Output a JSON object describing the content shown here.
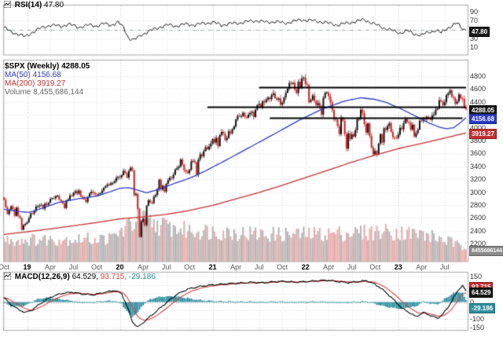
{
  "legends": {
    "rsi": {
      "name": "RSI(14)",
      "value": "47.80"
    },
    "price": {
      "symbol": "$SPX (Weekly)",
      "value": "4288.05"
    },
    "ma50": {
      "label": "MA(50)",
      "value": "4156.68"
    },
    "ma200": {
      "label": "MA(200)",
      "value": "3919.27"
    },
    "volume": {
      "label": "Volume",
      "value": "8,455,686,144"
    },
    "macd": {
      "name": "MACD(12,26,9)",
      "v1": "64.529,",
      "v2": "93.715,",
      "v3": "-29.186"
    }
  },
  "boxes": {
    "rsi": "47.80",
    "price": "4288.05",
    "ma50": "4156.68",
    "ma200": "3919.27",
    "volume": "8455686144",
    "macd": "64.529",
    "signal": "93.715",
    "hist": "-29.186"
  },
  "colors": {
    "up": "#111111",
    "down": "#cc2222",
    "ma50": "#2b3bc4",
    "ma200": "#c53030",
    "volume_up": "#b4b4b4",
    "volume_down": "#e7abab",
    "macd_line": "#000000",
    "signal_line": "#d94040",
    "histogram": "#2e8fa0",
    "rsi_line": "#111111",
    "trendline": "#000000",
    "grid": "#dedede",
    "grid_year": "#c6c6c6",
    "panel_border": "#aaaaaa"
  },
  "chart_data": {
    "type": "candlestick-multi-panel",
    "symbol": "$SPX",
    "timeframe": "Weekly",
    "panels": [
      "RSI(14)",
      "Price+MA+Volume",
      "MACD(12,26,9)"
    ],
    "x_ticks": [
      {
        "label": "Oct",
        "week": 0,
        "year": false
      },
      {
        "label": "19",
        "week": 13,
        "year": true
      },
      {
        "label": "Apr",
        "week": 26,
        "year": false
      },
      {
        "label": "Jul",
        "week": 39,
        "year": false
      },
      {
        "label": "Oct",
        "week": 52,
        "year": false
      },
      {
        "label": "20",
        "week": 65,
        "year": true
      },
      {
        "label": "Apr",
        "week": 78,
        "year": false
      },
      {
        "label": "Jul",
        "week": 91,
        "year": false
      },
      {
        "label": "Oct",
        "week": 104,
        "year": false
      },
      {
        "label": "21",
        "week": 117,
        "year": true
      },
      {
        "label": "Apr",
        "week": 130,
        "year": false
      },
      {
        "label": "Jul",
        "week": 143,
        "year": false
      },
      {
        "label": "Oct",
        "week": 156,
        "year": false
      },
      {
        "label": "22",
        "week": 169,
        "year": true
      },
      {
        "label": "Apr",
        "week": 182,
        "year": false
      },
      {
        "label": "Jul",
        "week": 195,
        "year": false
      },
      {
        "label": "Oct",
        "week": 208,
        "year": false
      },
      {
        "label": "23",
        "week": 221,
        "year": true
      },
      {
        "label": "Apr",
        "week": 234,
        "year": false
      },
      {
        "label": "Jul",
        "week": 247,
        "year": false
      }
    ],
    "price": {
      "last": 4288.05,
      "ylim": [
        2200,
        4900
      ],
      "y_ticks": [
        4800,
        4600,
        4400,
        4200,
        4000,
        3800,
        3600,
        3400,
        3200,
        3000,
        2800,
        2600,
        2400,
        2200
      ],
      "closes": [
        2886,
        2767,
        2658,
        2723,
        2781,
        2736,
        2632,
        2760,
        2633,
        2600,
        2417,
        2486,
        2506,
        2532,
        2596,
        2670,
        2665,
        2707,
        2776,
        2780,
        2793,
        2803,
        2743,
        2822,
        2801,
        2834,
        2893,
        2907,
        2905,
        2940,
        2945,
        2881,
        2859,
        2826,
        2752,
        2873,
        2887,
        2950,
        2942,
        2990,
        3014,
        2977,
        3026,
        2932,
        2919,
        2889,
        2847,
        2926,
        2979,
        3007,
        2992,
        2962,
        2952,
        2970,
        2986,
        3023,
        3067,
        3093,
        3120,
        3110,
        3141,
        3146,
        3169,
        3221,
        3240,
        3230,
        3265,
        3330,
        3295,
        3225,
        3328,
        3380,
        3338,
        2954,
        2972,
        2741,
        2305,
        2542,
        2585,
        2489,
        2790,
        2875,
        2837,
        2830,
        2930,
        2955,
        3044,
        3194,
        3041,
        3098,
        3009,
        3130,
        3185,
        3225,
        3216,
        3271,
        3351,
        3373,
        3397,
        3508,
        3427,
        3341,
        3319,
        3298,
        3348,
        3477,
        3484,
        3465,
        3270,
        3509,
        3585,
        3558,
        3638,
        3699,
        3663,
        3709,
        3756,
        3825,
        3768,
        3841,
        3714,
        3887,
        3935,
        3907,
        3811,
        3842,
        3943,
        3913,
        3975,
        4020,
        4129,
        4185,
        4180,
        4181,
        4233,
        4174,
        4156,
        4204,
        4230,
        4247,
        4166,
        4281,
        4352,
        4370,
        4327,
        4412,
        4395,
        4437,
        4468,
        4442,
        4509,
        4535,
        4459,
        4433,
        4455,
        4357,
        4391,
        4471,
        4545,
        4605,
        4698,
        4683,
        4698,
        4595,
        4538,
        4712,
        4621,
        4766,
        4778,
        4677,
        4663,
        4398,
        4432,
        4501,
        4419,
        4349,
        4385,
        4329,
        4204,
        4463,
        4543,
        4546,
        4488,
        4393,
        4272,
        4132,
        4123,
        4024,
        3901,
        4158,
        4109,
        3901,
        3675,
        3912,
        3825,
        3899,
        3863,
        3962,
        4130,
        4145,
        4280,
        4228,
        4058,
        3924,
        4067,
        3873,
        3693,
        3586,
        3640,
        3583,
        3753,
        3901,
        3771,
        3993,
        3965,
        4026,
        4071,
        3934,
        3852,
        3845,
        3840,
        3895,
        3999,
        3973,
        4071,
        4136,
        4090,
        4079,
        3970,
        4046,
        3862,
        3917,
        3971,
        4109,
        4105,
        4138,
        4134,
        4169,
        4136,
        4124,
        4192,
        4205,
        4282,
        4299,
        4426,
        4410,
        4348,
        4399,
        4505,
        4536,
        4582,
        4478,
        4464,
        4370,
        4406,
        4516,
        4458,
        4450,
        4320,
        4288
      ],
      "ma50": {
        "value": 4156.68,
        "anchors": [
          [
            0,
            2735
          ],
          [
            8,
            2700
          ],
          [
            14,
            2685
          ],
          [
            22,
            2755
          ],
          [
            30,
            2835
          ],
          [
            40,
            2890
          ],
          [
            52,
            2940
          ],
          [
            60,
            3010
          ],
          [
            65,
            3060
          ],
          [
            70,
            3070
          ],
          [
            75,
            3030
          ],
          [
            80,
            2990
          ],
          [
            88,
            3055
          ],
          [
            96,
            3140
          ],
          [
            104,
            3215
          ],
          [
            113,
            3330
          ],
          [
            126,
            3520
          ],
          [
            139,
            3715
          ],
          [
            152,
            3910
          ],
          [
            165,
            4110
          ],
          [
            178,
            4285
          ],
          [
            191,
            4415
          ],
          [
            200,
            4465
          ],
          [
            208,
            4440
          ],
          [
            214,
            4395
          ],
          [
            222,
            4300
          ],
          [
            230,
            4190
          ],
          [
            238,
            4075
          ],
          [
            244,
            4010
          ],
          [
            248,
            3985
          ],
          [
            252,
            4000
          ],
          [
            255,
            4060
          ],
          [
            259,
            4157
          ]
        ]
      },
      "ma200": {
        "value": 3919.27,
        "anchors": [
          [
            0,
            2345
          ],
          [
            13,
            2385
          ],
          [
            26,
            2430
          ],
          [
            39,
            2478
          ],
          [
            52,
            2528
          ],
          [
            65,
            2585
          ],
          [
            78,
            2615
          ],
          [
            91,
            2655
          ],
          [
            104,
            2715
          ],
          [
            117,
            2795
          ],
          [
            130,
            2895
          ],
          [
            143,
            2995
          ],
          [
            156,
            3105
          ],
          [
            169,
            3225
          ],
          [
            182,
            3345
          ],
          [
            195,
            3465
          ],
          [
            208,
            3575
          ],
          [
            221,
            3675
          ],
          [
            234,
            3755
          ],
          [
            247,
            3840
          ],
          [
            259,
            3919
          ]
        ]
      },
      "trendlines": [
        {
          "from": 143,
          "to": 259,
          "value": 4630
        },
        {
          "from": 114,
          "to": 259,
          "value": 4330
        },
        {
          "from": 149,
          "to": 257,
          "value": 4150
        }
      ],
      "volume": {
        "last": 8455686144,
        "scale_max": 34000000000,
        "anchors": [
          [
            0,
            15000000000
          ],
          [
            60,
            16000000000
          ],
          [
            69,
            24000000000
          ],
          [
            75,
            30000000000
          ],
          [
            85,
            26000000000
          ],
          [
            100,
            22000000000
          ],
          [
            120,
            21000000000
          ],
          [
            145,
            19000000000
          ],
          [
            170,
            19000000000
          ],
          [
            195,
            20000000000
          ],
          [
            215,
            21000000000
          ],
          [
            235,
            19000000000
          ],
          [
            250,
            14000000000
          ],
          [
            259,
            8500000000
          ]
        ]
      }
    },
    "rsi": {
      "last": 47.8,
      "y_ticks": [
        90,
        70,
        50,
        30,
        10
      ],
      "anchors": [
        [
          0,
          55
        ],
        [
          4,
          44
        ],
        [
          8,
          40
        ],
        [
          12,
          33
        ],
        [
          16,
          44
        ],
        [
          20,
          52
        ],
        [
          26,
          60
        ],
        [
          32,
          57
        ],
        [
          36,
          62
        ],
        [
          42,
          55
        ],
        [
          48,
          60
        ],
        [
          52,
          58
        ],
        [
          56,
          63
        ],
        [
          60,
          60
        ],
        [
          64,
          66
        ],
        [
          67,
          55
        ],
        [
          70,
          30
        ],
        [
          73,
          26
        ],
        [
          77,
          38
        ],
        [
          82,
          47
        ],
        [
          87,
          55
        ],
        [
          92,
          60
        ],
        [
          97,
          58
        ],
        [
          102,
          62
        ],
        [
          107,
          60
        ],
        [
          112,
          64
        ],
        [
          117,
          66
        ],
        [
          122,
          60
        ],
        [
          127,
          63
        ],
        [
          132,
          65
        ],
        [
          137,
          68
        ],
        [
          142,
          70
        ],
        [
          147,
          66
        ],
        [
          152,
          68
        ],
        [
          157,
          64
        ],
        [
          162,
          68
        ],
        [
          167,
          72
        ],
        [
          172,
          70
        ],
        [
          177,
          68
        ],
        [
          182,
          64
        ],
        [
          187,
          60
        ],
        [
          192,
          64
        ],
        [
          197,
          68
        ],
        [
          202,
          72
        ],
        [
          206,
          65
        ],
        [
          210,
          58
        ],
        [
          214,
          52
        ],
        [
          218,
          47
        ],
        [
          222,
          42
        ],
        [
          226,
          47
        ],
        [
          230,
          40
        ],
        [
          234,
          37
        ],
        [
          238,
          44
        ],
        [
          242,
          48
        ],
        [
          245,
          42
        ],
        [
          248,
          52
        ],
        [
          251,
          58
        ],
        [
          254,
          64
        ],
        [
          256,
          56
        ],
        [
          258,
          50
        ],
        [
          259,
          47.8
        ]
      ]
    },
    "macd": {
      "last": 64.529,
      "signal": 93.715,
      "hist": -29.186,
      "y_ticks": [
        150,
        100,
        50,
        0,
        -50,
        -100,
        -150
      ],
      "anchors": [
        [
          0,
          25
        ],
        [
          4,
          -15
        ],
        [
          8,
          -42
        ],
        [
          12,
          -62
        ],
        [
          16,
          -45
        ],
        [
          20,
          -12
        ],
        [
          26,
          28
        ],
        [
          32,
          50
        ],
        [
          38,
          58
        ],
        [
          44,
          47
        ],
        [
          50,
          42
        ],
        [
          56,
          56
        ],
        [
          62,
          68
        ],
        [
          66,
          50
        ],
        [
          69,
          -25
        ],
        [
          72,
          -115
        ],
        [
          75,
          -148
        ],
        [
          79,
          -112
        ],
        [
          85,
          -58
        ],
        [
          91,
          -4
        ],
        [
          97,
          46
        ],
        [
          103,
          76
        ],
        [
          109,
          90
        ],
        [
          115,
          99
        ],
        [
          121,
          104
        ],
        [
          127,
          109
        ],
        [
          133,
          112
        ],
        [
          139,
          116
        ],
        [
          145,
          113
        ],
        [
          151,
          119
        ],
        [
          157,
          122
        ],
        [
          163,
          116
        ],
        [
          169,
          120
        ],
        [
          175,
          125
        ],
        [
          181,
          128
        ],
        [
          187,
          120
        ],
        [
          193,
          114
        ],
        [
          199,
          121
        ],
        [
          203,
          125
        ],
        [
          207,
          110
        ],
        [
          211,
          84
        ],
        [
          215,
          48
        ],
        [
          219,
          8
        ],
        [
          223,
          -36
        ],
        [
          227,
          -60
        ],
        [
          231,
          -86
        ],
        [
          235,
          -62
        ],
        [
          239,
          -78
        ],
        [
          243,
          -96
        ],
        [
          246,
          -70
        ],
        [
          249,
          -30
        ],
        [
          252,
          25
        ],
        [
          255,
          75
        ],
        [
          257,
          98
        ],
        [
          259,
          64.5
        ]
      ]
    }
  }
}
